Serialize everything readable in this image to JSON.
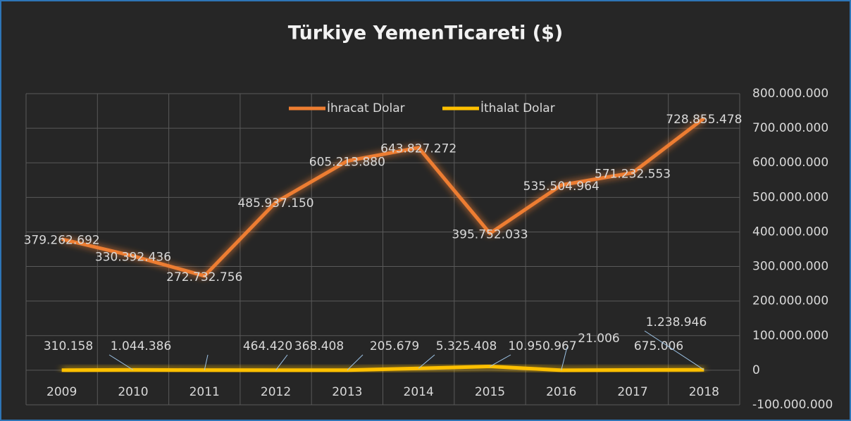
{
  "chart_data": {
    "type": "line",
    "title": "Türkiye YemenTicareti ($)",
    "categories": [
      "2009",
      "2010",
      "2011",
      "2012",
      "2013",
      "2014",
      "2015",
      "2016",
      "2017",
      "2018"
    ],
    "series": [
      {
        "name": "İhracat Dolar",
        "color": "#ed7d31",
        "values": [
          379262692,
          330392436,
          272732756,
          485937150,
          605213880,
          643827272,
          395752033,
          535504964,
          571232553,
          728855478
        ],
        "value_labels": [
          "379.262.692",
          "330.392.436",
          "272.732.756",
          "485.937.150",
          "605.213.880",
          "643.827.272",
          "395.752.033",
          "535.504.964",
          "571.232.553",
          "728.855.478"
        ]
      },
      {
        "name": "İthalat Dolar",
        "color": "#ffc000",
        "values": [
          310158,
          1044386,
          464420,
          368408,
          205679,
          5325408,
          10950967,
          21006,
          675006,
          1238946
        ],
        "value_labels": [
          "310.158",
          "1.044.386",
          "464.420",
          "368.408",
          "205.679",
          "5.325.408",
          "10.950.967",
          "21.006",
          "675.006",
          "1.238.946"
        ]
      }
    ],
    "ylim": [
      -100000000,
      800000000
    ],
    "yticks": [
      {
        "value": -100000000,
        "label": "-100.000.000"
      },
      0,
      {
        "value": 100000000,
        "label": "100.000.000"
      },
      {
        "value": 200000000,
        "label": "200.000.000"
      },
      {
        "value": 300000000,
        "label": "300.000.000"
      },
      {
        "value": 400000000,
        "label": "400.000.000"
      },
      {
        "value": 500000000,
        "label": "500.000.000"
      },
      {
        "value": 600000000,
        "label": "600.000.000"
      },
      {
        "value": 700000000,
        "label": "700.000.000"
      },
      {
        "value": 800000000,
        "label": "800.000.000"
      }
    ],
    "grid": true,
    "legend": "top"
  }
}
